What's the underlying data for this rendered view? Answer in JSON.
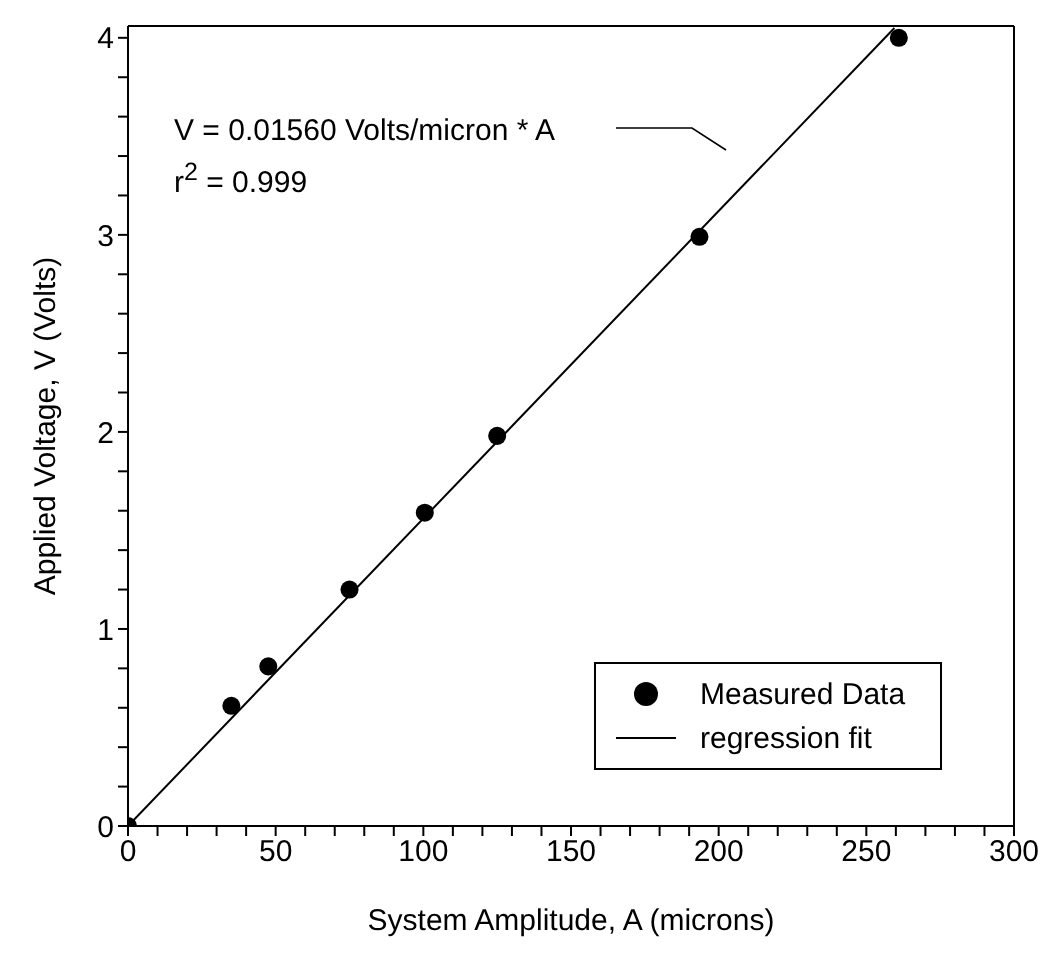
{
  "chart_data": {
    "type": "scatter",
    "xlabel": "System Amplitude, A (microns)",
    "ylabel": "Applied Voltage, V (Volts)",
    "annotations": [
      "V = 0.01560 Volts/micron * A",
      "r$^{2}$ = 0.999"
    ],
    "series": [
      {
        "name": "Measured Data",
        "type": "scatter",
        "color": "#000000",
        "marker": "circle",
        "x": [
          0,
          35,
          47.5,
          75,
          100.5,
          125,
          193.5,
          261
        ],
        "values": [
          0,
          0.61,
          0.81,
          1.2,
          1.59,
          1.98,
          2.99,
          4.0
        ]
      },
      {
        "name": "regression fit",
        "type": "line",
        "color": "#000000",
        "marker": "none",
        "line_style": "solid",
        "x": [
          0,
          259.5
        ],
        "values": [
          0,
          4.05
        ]
      }
    ],
    "xlim": [
      0,
      300
    ],
    "ylim": [
      0,
      4.06
    ],
    "xticks": [
      0,
      {
        "value": 10,
        "label": null
      },
      {
        "value": 20,
        "label": null
      },
      {
        "value": 30,
        "label": null
      },
      {
        "value": 40,
        "label": null
      },
      50,
      {
        "value": 60,
        "label": null
      },
      {
        "value": 70,
        "label": null
      },
      {
        "value": 80,
        "label": null
      },
      {
        "value": 90,
        "label": null
      },
      100,
      {
        "value": 110,
        "label": null
      },
      {
        "value": 120,
        "label": null
      },
      {
        "value": 130,
        "label": null
      },
      {
        "value": 140,
        "label": null
      },
      150,
      {
        "value": 160,
        "label": null
      },
      {
        "value": 170,
        "label": null
      },
      {
        "value": 180,
        "label": null
      },
      {
        "value": 190,
        "label": null
      },
      200,
      {
        "value": 210,
        "label": null
      },
      {
        "value": 220,
        "label": null
      },
      {
        "value": 230,
        "label": null
      },
      {
        "value": 240,
        "label": null
      },
      250,
      {
        "value": 260,
        "label": null
      },
      {
        "value": 270,
        "label": null
      },
      {
        "value": 280,
        "label": null
      },
      {
        "value": 290,
        "label": null
      },
      300
    ],
    "yticks": [
      0,
      {
        "value": 0.2,
        "label": null
      },
      {
        "value": 0.4,
        "label": null
      },
      {
        "value": 0.6,
        "label": null
      },
      {
        "value": 0.8,
        "label": null
      },
      1,
      {
        "value": 1.2,
        "label": null
      },
      {
        "value": 1.4,
        "label": null
      },
      {
        "value": 1.6,
        "label": null
      },
      {
        "value": 1.8,
        "label": null
      },
      2,
      {
        "value": 2.2,
        "label": null
      },
      {
        "value": 2.4,
        "label": null
      },
      {
        "value": 2.6,
        "label": null
      },
      {
        "value": 2.8,
        "label": null
      },
      3,
      {
        "value": 3.2,
        "label": null
      },
      {
        "value": 3.4,
        "label": null
      },
      {
        "value": 3.6,
        "label": null
      },
      {
        "value": 3.8,
        "label": null
      },
      4
    ],
    "grid": false,
    "legend": "bottom right"
  }
}
